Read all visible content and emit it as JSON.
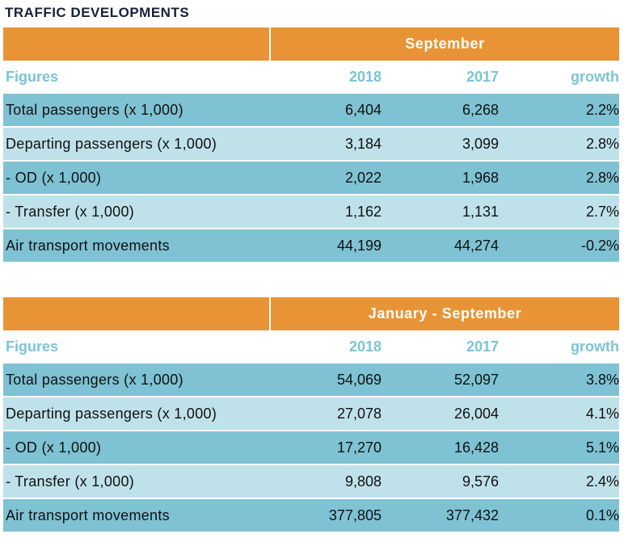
{
  "title": "TRAFFIC DEVELOPMENTS",
  "tables": [
    {
      "period": "September",
      "header": {
        "label": "Figures",
        "col1": "2018",
        "col2": "2017",
        "col3": "growth"
      },
      "rows": [
        {
          "label": "Total passengers (x 1,000)",
          "v2018": "6,404",
          "v2017": "6,268",
          "growth": "2.2%"
        },
        {
          "label": "Departing passengers (x 1,000)",
          "v2018": "3,184",
          "v2017": "3,099",
          "growth": "2.8%"
        },
        {
          "label": "- OD (x 1,000)",
          "v2018": "2,022",
          "v2017": "1,968",
          "growth": "2.8%"
        },
        {
          "label": "- Transfer  (x 1,000)",
          "v2018": "1,162",
          "v2017": "1,131",
          "growth": "2.7%"
        },
        {
          "label": "Air transport movements",
          "v2018": "44,199",
          "v2017": "44,274",
          "growth": "-0.2%"
        }
      ]
    },
    {
      "period": "January - September",
      "header": {
        "label": "Figures",
        "col1": "2018",
        "col2": "2017",
        "col3": "growth"
      },
      "rows": [
        {
          "label": "Total passengers (x 1,000)",
          "v2018": "54,069",
          "v2017": "52,097",
          "growth": "3.8%"
        },
        {
          "label": "Departing passengers (x 1,000)",
          "v2018": "27,078",
          "v2017": "26,004",
          "growth": "4.1%"
        },
        {
          "label": "- OD (x 1,000)",
          "v2018": "17,270",
          "v2017": "16,428",
          "growth": "5.1%"
        },
        {
          "label": "- Transfer  (x 1,000)",
          "v2018": "9,808",
          "v2017": "9,576",
          "growth": "2.4%"
        },
        {
          "label": "Air transport movements",
          "v2018": "377,805",
          "v2017": "377,432",
          "growth": "0.1%"
        }
      ]
    }
  ]
}
